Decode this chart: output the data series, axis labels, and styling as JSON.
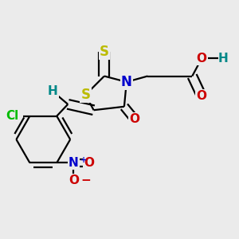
{
  "background_color": "#ebebeb",
  "bond_color": "#000000",
  "bond_width": 1.6,
  "atoms": {
    "S_ring": {
      "label": "S",
      "color": "#bbbb00"
    },
    "S_thioxo": {
      "label": "S",
      "color": "#bbbb00"
    },
    "N": {
      "label": "N",
      "color": "#0000cc"
    },
    "O_oxo": {
      "label": "O",
      "color": "#cc0000"
    },
    "O_acid1": {
      "label": "O",
      "color": "#cc0000"
    },
    "O_acid2": {
      "label": "O",
      "color": "#cc0000"
    },
    "H_acid": {
      "label": "H",
      "color": "#008888"
    },
    "H_vinyl": {
      "label": "H",
      "color": "#008888"
    },
    "Cl": {
      "label": "Cl",
      "color": "#00bb00"
    },
    "N_nitro": {
      "label": "N",
      "color": "#0000cc"
    },
    "O_nitro1": {
      "label": "O",
      "color": "#cc0000"
    },
    "O_nitro2": {
      "label": "O",
      "color": "#cc0000"
    }
  }
}
